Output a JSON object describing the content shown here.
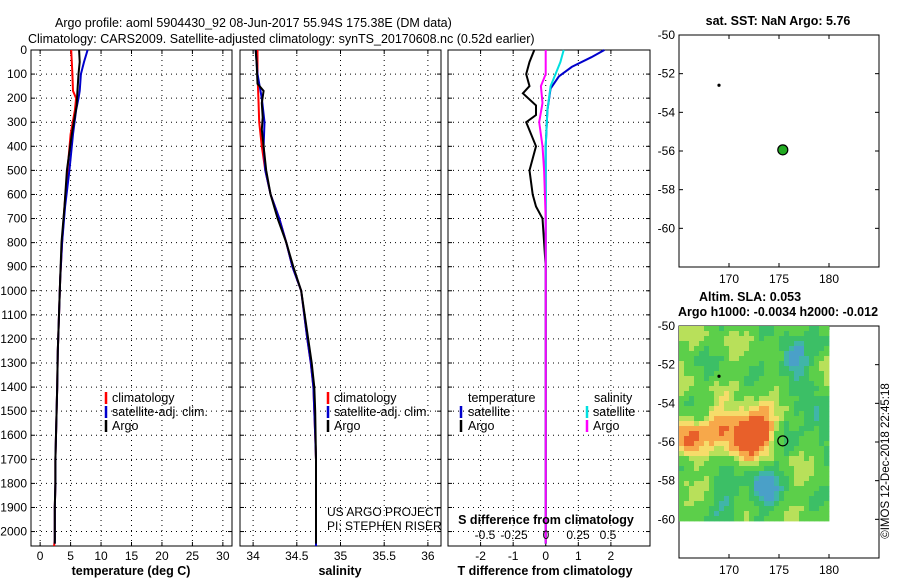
{
  "header": {
    "title1": "Argo profile: aoml 5904430_92 08-Jun-2017 55.94S 175.38E (DM data)",
    "title2": "Climatology: CARS2009. Satellite-adjusted climatology: synTS_20170608.nc (0.52d earlier)"
  },
  "colors": {
    "climatology": "#ff0000",
    "satellite": "#0000cc",
    "argo": "#000000",
    "s_satellite": "#00e0e0",
    "s_argo": "#ff00ff",
    "marker": "#22aa22"
  },
  "depth_axis": {
    "ticks": [
      0,
      100,
      200,
      300,
      400,
      500,
      600,
      700,
      800,
      900,
      1000,
      1100,
      1200,
      1300,
      1400,
      1500,
      1600,
      1700,
      1800,
      1900,
      2000
    ],
    "labels": [
      "0",
      "100",
      "200",
      "300",
      "400",
      "500",
      "600",
      "700",
      "800",
      "900",
      "1000",
      "1100",
      "1200",
      "1300",
      "1400",
      "1500",
      "1600",
      "1700",
      "1800",
      "1900",
      "2000"
    ]
  },
  "chart_data": [
    {
      "type": "line",
      "name": "temperature-profile",
      "xlabel": "temperature (deg C)",
      "xlim": [
        -1.5,
        31.5
      ],
      "ylim": [
        2060,
        0
      ],
      "xticks": [
        0,
        5,
        10,
        15,
        20,
        25,
        30
      ],
      "xtick_labels": [
        "0",
        "5",
        "10",
        "15",
        "20",
        "25",
        "30"
      ],
      "legend": [
        "climatology",
        "satellite-adj. clim.",
        "Argo"
      ],
      "series": [
        {
          "name": "climatology",
          "color": "#ff0000",
          "x": [
            5.1,
            5.2,
            5.3,
            5.4,
            5.9,
            5.7,
            5.0,
            4.5,
            4.0,
            3.6,
            3.3,
            3.1,
            2.9,
            2.8,
            2.7,
            2.6,
            2.5,
            2.5,
            2.4,
            2.4,
            2.4,
            2.3
          ],
          "y": [
            0,
            50,
            100,
            170,
            200,
            250,
            350,
            500,
            650,
            800,
            950,
            1100,
            1250,
            1400,
            1500,
            1600,
            1700,
            1800,
            1900,
            2000,
            2030,
            2060
          ]
        },
        {
          "name": "satellite-adj. clim.",
          "color": "#0000cc",
          "x": [
            7.8,
            7.2,
            6.7,
            6.5,
            6.3,
            5.9,
            5.4,
            4.8,
            4.1,
            3.6,
            3.3,
            3.1,
            2.9,
            2.8,
            2.7,
            2.6,
            2.5,
            2.5,
            2.4,
            2.4,
            2.4
          ],
          "y": [
            0,
            50,
            100,
            170,
            200,
            250,
            350,
            500,
            650,
            800,
            950,
            1100,
            1250,
            1400,
            1500,
            1600,
            1700,
            1800,
            1900,
            2000,
            2050
          ]
        },
        {
          "name": "Argo",
          "color": "#000000",
          "x": [
            6.4,
            6.5,
            6.3,
            6.1,
            6.0,
            5.8,
            5.2,
            4.4,
            4.0,
            3.5,
            3.3,
            3.1,
            2.9,
            2.8,
            2.7,
            2.6,
            2.5,
            2.5,
            2.4,
            2.4,
            2.4
          ],
          "y": [
            0,
            50,
            100,
            180,
            230,
            260,
            350,
            500,
            650,
            800,
            950,
            1100,
            1250,
            1400,
            1500,
            1600,
            1700,
            1800,
            1900,
            2000,
            2050
          ]
        }
      ]
    },
    {
      "type": "line",
      "name": "salinity-profile",
      "xlabel": "salinity",
      "xlim": [
        33.85,
        36.15
      ],
      "ylim": [
        2060,
        0
      ],
      "xticks": [
        34,
        34.5,
        35,
        35.5,
        36
      ],
      "xtick_labels": [
        "34",
        "34.5",
        "35",
        "35.5",
        "36"
      ],
      "legend": [
        "climatology",
        "satellite-adj. clim.",
        "Argo"
      ],
      "series": [
        {
          "name": "climatology",
          "color": "#ff0000",
          "x": [
            34.05,
            34.05,
            34.06,
            34.07,
            34.1,
            34.14,
            34.2,
            34.3,
            34.38,
            34.45,
            34.55,
            34.62,
            34.66,
            34.69,
            34.7,
            34.71,
            34.72,
            34.72,
            34.72,
            34.72
          ],
          "y": [
            0,
            100,
            200,
            300,
            400,
            500,
            600,
            700,
            800,
            900,
            1000,
            1200,
            1300,
            1400,
            1500,
            1600,
            1700,
            1800,
            1900,
            2060
          ]
        },
        {
          "name": "satellite-adj. clim.",
          "color": "#0000cc",
          "x": [
            34.03,
            34.05,
            34.1,
            34.13,
            34.12,
            34.14,
            34.2,
            34.3,
            34.38,
            34.45,
            34.55,
            34.62,
            34.66,
            34.69,
            34.7,
            34.71,
            34.72,
            34.72,
            34.72,
            34.72
          ],
          "y": [
            0,
            100,
            200,
            300,
            400,
            500,
            600,
            700,
            800,
            900,
            1000,
            1200,
            1300,
            1400,
            1500,
            1600,
            1700,
            1800,
            1900,
            2060
          ]
        },
        {
          "name": "Argo",
          "color": "#000000",
          "x": [
            34.03,
            34.04,
            34.05,
            34.12,
            34.1,
            34.11,
            34.1,
            34.12,
            34.15,
            34.2,
            34.28,
            34.38,
            34.46,
            34.55,
            34.63,
            34.67,
            34.7,
            34.71,
            34.72,
            34.72,
            34.72
          ],
          "y": [
            0,
            50,
            140,
            170,
            220,
            280,
            330,
            400,
            500,
            600,
            700,
            800,
            900,
            1000,
            1200,
            1300,
            1400,
            1500,
            1700,
            1900,
            2050
          ]
        }
      ]
    },
    {
      "type": "line",
      "name": "difference-profile",
      "xlabel": "T difference from climatology",
      "xlim": [
        -3,
        3.2
      ],
      "ylim": [
        2060,
        0
      ],
      "xticks": [
        -2,
        -1,
        0,
        1,
        2
      ],
      "xtick_labels": [
        "-2",
        "-1",
        "0",
        "1",
        "2"
      ],
      "legend_title_left": "temperature",
      "legend_title_right": "salinity",
      "legend": [
        "satellite",
        "Argo",
        "satellite",
        "Argo"
      ],
      "footer_title": "S difference from climatology",
      "s_ticks": [
        "-0.5",
        "-0.25",
        "0",
        "0.25",
        "0.5"
      ],
      "series": [
        {
          "name": "T satellite",
          "color": "#0000cc",
          "x": [
            1.8,
            1.4,
            0.8,
            0.4,
            0.15,
            0.05,
            0.0,
            0.0,
            0.0,
            0.0,
            0.0,
            0.0
          ],
          "y": [
            0,
            30,
            70,
            110,
            160,
            250,
            400,
            600,
            800,
            1200,
            1600,
            2050
          ]
        },
        {
          "name": "T Argo",
          "color": "#000000",
          "x": [
            -0.35,
            -0.5,
            -0.6,
            -0.5,
            -0.7,
            -0.3,
            -0.3,
            -0.6,
            -0.3,
            -0.5,
            -0.4,
            -0.3,
            -0.1,
            0.0,
            0.0,
            0.0
          ],
          "y": [
            0,
            50,
            100,
            150,
            180,
            230,
            270,
            300,
            400,
            500,
            600,
            650,
            700,
            900,
            1500,
            2050
          ]
        },
        {
          "name": "S satellite",
          "color": "#00e0e0",
          "x": [
            0.55,
            0.45,
            0.3,
            0.15,
            0.05,
            0.0,
            0.0,
            0.0,
            0.0,
            0.0
          ],
          "y": [
            0,
            50,
            100,
            150,
            250,
            400,
            700,
            1000,
            1500,
            2050
          ]
        },
        {
          "name": "S Argo",
          "color": "#ff00ff",
          "x": [
            0.0,
            0.0,
            -0.15,
            -0.1,
            -0.2,
            -0.1,
            -0.05,
            0.0,
            0.0,
            0.0
          ],
          "y": [
            0,
            100,
            150,
            220,
            300,
            400,
            500,
            700,
            1400,
            2050
          ]
        }
      ]
    },
    {
      "type": "scatter",
      "name": "sst-map",
      "title": "sat. SST: NaN Argo: 5.76",
      "xlim": [
        165,
        185
      ],
      "ylim": [
        -62,
        -50
      ],
      "xticks": [
        170,
        175,
        180
      ],
      "xtick_labels": [
        "170",
        "175",
        "180"
      ],
      "yticks": [
        -50,
        -52,
        -54,
        -56,
        -58,
        -60
      ],
      "ytick_labels": [
        "-50",
        "-52",
        "-54",
        "-56",
        "-58",
        "-60"
      ],
      "points": [
        {
          "name": "previous-position",
          "x": 169.0,
          "y": -52.6
        },
        {
          "name": "float-position",
          "x": 175.38,
          "y": -55.94
        }
      ]
    },
    {
      "type": "heatmap",
      "name": "sla-map",
      "title1": "Altim. SLA: 0.053",
      "title2": "Argo h1000: -0.0034 h2000: -0.012",
      "xlim": [
        165,
        185
      ],
      "ylim": [
        -62,
        -50
      ],
      "field_extent": {
        "lon": [
          165,
          180
        ],
        "lat": [
          -60,
          -50
        ]
      },
      "xticks": [
        170,
        175,
        180
      ],
      "xtick_labels": [
        "170",
        "175",
        "180"
      ],
      "yticks": [
        -50,
        -52,
        -54,
        -56,
        -58,
        -60
      ],
      "ytick_labels": [
        "-50",
        "-52",
        "-54",
        "-56",
        "-58",
        "-60"
      ],
      "points": [
        {
          "name": "previous-position",
          "x": 169.0,
          "y": -52.6
        },
        {
          "name": "float-position",
          "x": 175.38,
          "y": -55.94
        }
      ]
    }
  ],
  "footer": {
    "project_line1": "US ARGO PROJECT",
    "project_line2": "PI: STEPHEN RISER",
    "credit": "©IMOS 12-Dec-2018 22:45:18"
  }
}
